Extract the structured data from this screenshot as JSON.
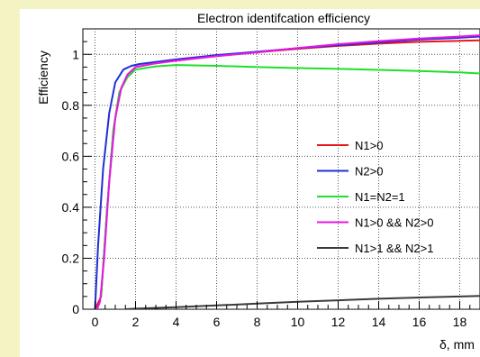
{
  "chart_data": {
    "type": "line",
    "title": "Electron identifcation efficiency",
    "xlabel": "δ, mm",
    "ylabel": "Efficiency",
    "xlim": [
      -0.6,
      19.0
    ],
    "ylim": [
      0,
      1.1
    ],
    "x_ticks": [
      0,
      2,
      4,
      6,
      8,
      10,
      12,
      14,
      16,
      18
    ],
    "y_ticks": [
      0,
      0.2,
      0.4,
      0.6,
      0.8,
      1
    ],
    "y_tick_labels": [
      "0",
      "0.2",
      "0.4",
      "0.6",
      "0.8",
      "1"
    ],
    "grid": true,
    "legend_position": "right",
    "series": [
      {
        "name": "N1>0",
        "color": "#e8161b",
        "x": [
          0.0,
          0.3,
          0.6,
          0.9,
          1.2,
          1.6,
          2.0,
          3,
          4,
          6,
          8,
          10,
          12,
          14,
          16,
          18,
          19
        ],
        "y": [
          0.0,
          0.05,
          0.4,
          0.7,
          0.85,
          0.92,
          0.95,
          0.965,
          0.975,
          0.993,
          1.008,
          1.022,
          1.033,
          1.042,
          1.049,
          1.053,
          1.055
        ]
      },
      {
        "name": "N2>0",
        "color": "#1f2fd6",
        "x": [
          0.0,
          0.15,
          0.4,
          0.7,
          1.0,
          1.4,
          1.8,
          2.2,
          3,
          4,
          6,
          8,
          10,
          12,
          14,
          16,
          18,
          19
        ],
        "y": [
          0.0,
          0.25,
          0.55,
          0.77,
          0.89,
          0.94,
          0.955,
          0.962,
          0.97,
          0.98,
          0.997,
          1.01,
          1.024,
          1.036,
          1.047,
          1.058,
          1.065,
          1.07
        ]
      },
      {
        "name": "N1=N2=1",
        "color": "#1de02a",
        "x": [
          0.3,
          0.6,
          0.9,
          1.2,
          1.6,
          2.0,
          3,
          4,
          6,
          8,
          10,
          12,
          14,
          16,
          18,
          19
        ],
        "y": [
          0.05,
          0.4,
          0.7,
          0.85,
          0.91,
          0.94,
          0.953,
          0.958,
          0.955,
          0.95,
          0.946,
          0.943,
          0.939,
          0.935,
          0.929,
          0.925
        ]
      },
      {
        "name": "N1>0 && N2>0",
        "color": "#e617e6",
        "x": [
          0.1,
          0.25,
          0.45,
          0.7,
          1.0,
          1.3,
          1.6,
          2.0,
          3,
          4,
          6,
          8,
          10,
          12,
          14,
          16,
          18,
          19
        ],
        "y": [
          0.0,
          0.03,
          0.2,
          0.5,
          0.75,
          0.87,
          0.92,
          0.95,
          0.965,
          0.975,
          0.993,
          1.008,
          1.025,
          1.04,
          1.052,
          1.062,
          1.07,
          1.075
        ]
      },
      {
        "name": "N1>1 && N2>1",
        "color": "#3a3a3a",
        "x": [
          1.5,
          2,
          4,
          6,
          8,
          10,
          12,
          14,
          16,
          18,
          19
        ],
        "y": [
          0.0,
          0.002,
          0.008,
          0.015,
          0.022,
          0.029,
          0.035,
          0.041,
          0.046,
          0.05,
          0.052
        ]
      }
    ]
  }
}
